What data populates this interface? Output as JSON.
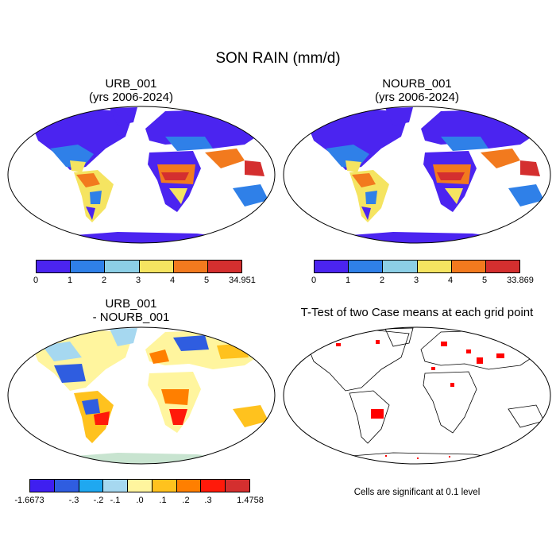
{
  "main_title": "SON RAIN (mm/d)",
  "panels": [
    {
      "id": "urb",
      "title_line1": "URB_001",
      "title_line2": "(yrs 2006-2024)",
      "colors": [
        "#4b24f0",
        "#2f80e8",
        "#8ccfe6",
        "#f5e461",
        "#f27a1e",
        "#d42f2f"
      ],
      "ticks": [
        "0",
        "1",
        "2",
        "3",
        "4",
        "5",
        "34.951"
      ]
    },
    {
      "id": "nourb",
      "title_line1": "NOURB_001",
      "title_line2": "(yrs 2006-2024)",
      "colors": [
        "#4b24f0",
        "#2f80e8",
        "#8ccfe6",
        "#f5e461",
        "#f27a1e",
        "#d42f2f"
      ],
      "ticks": [
        "0",
        "1",
        "2",
        "3",
        "4",
        "5",
        "33.869"
      ]
    },
    {
      "id": "diff",
      "title_line1": "URB_001",
      "title_line2": "- NOURB_001",
      "colors": [
        "#3f1ff0",
        "#2f5de0",
        "#1fa8f0",
        "#a6d8f0",
        "#fff59e",
        "#ffc21e",
        "#ff7f00",
        "#ff1a0a",
        "#d42f2f"
      ],
      "ticks": [
        "-1.6673",
        "-.3",
        "-.2",
        "-.1",
        ".0",
        ".1",
        ".2",
        ".3",
        "1.4758"
      ]
    },
    {
      "id": "ttest",
      "title": "T-Test of two Case means at each grid point",
      "note": "Cells are significant at 0.1 level",
      "significant_color": "#ff0000"
    }
  ]
}
